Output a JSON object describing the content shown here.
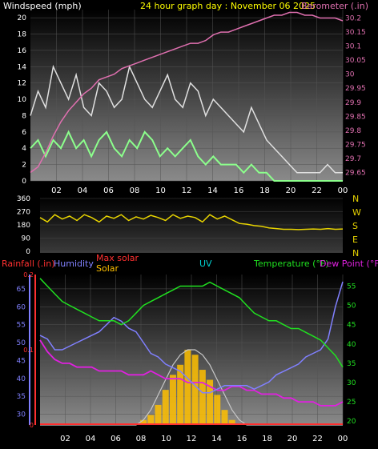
{
  "colors": {
    "wind": "#e0e0e0",
    "gust": "#8cff8c",
    "barometer": "#e070b0",
    "direction": "#e6d200",
    "humidity": "#8080ff",
    "temperature": "#20e020",
    "dewpoint": "#e020e0",
    "rain": "#ff3030",
    "solar": "#ffc000",
    "maxsolar": "#c8c8c8",
    "uv": "#00d0d0",
    "bg_top": "#000000",
    "bg_bottom": "#9a9a9a"
  },
  "chart_data": [
    {
      "type": "line",
      "title": "24 hour graph day : November 06 2025",
      "ylabel": "Windspeed (mph)",
      "y2label": "Barometer (.in)",
      "ylim": [
        0,
        21
      ],
      "yticks": [
        0,
        2,
        4,
        6,
        8,
        10,
        12,
        14,
        16,
        18,
        20
      ],
      "y2lim": [
        29.62,
        30.23
      ],
      "y2ticks": [
        "29.65",
        "29.7",
        "29.75",
        "29.8",
        "29.85",
        "29.9",
        "29.95",
        "30",
        "30.05",
        "30.1",
        "30.15",
        "30.2"
      ],
      "xticks": [
        "02",
        "04",
        "06",
        "08",
        "10",
        "12",
        "14",
        "16",
        "18",
        "20",
        "22",
        "00"
      ],
      "series": [
        {
          "key": "wind",
          "values": [
            8,
            11,
            9,
            14,
            12,
            10,
            13,
            9,
            8,
            12,
            11,
            9,
            10,
            14,
            12,
            10,
            9,
            11,
            13,
            10,
            9,
            12,
            11,
            8,
            10,
            9,
            8,
            7,
            6,
            9,
            7,
            5,
            4,
            3,
            2,
            1,
            1,
            1,
            1,
            2,
            1,
            1
          ]
        },
        {
          "key": "gust",
          "values": [
            4,
            5,
            3,
            5,
            4,
            6,
            4,
            5,
            3,
            5,
            6,
            4,
            3,
            5,
            4,
            6,
            5,
            3,
            4,
            3,
            4,
            5,
            3,
            2,
            3,
            2,
            2,
            2,
            1,
            2,
            1,
            1,
            0,
            0,
            0,
            0,
            0,
            0,
            0,
            0,
            0,
            0
          ]
        },
        {
          "key": "barometer",
          "values": [
            29.65,
            29.67,
            29.72,
            29.78,
            29.83,
            29.87,
            29.9,
            29.93,
            29.95,
            29.98,
            29.99,
            30,
            30.02,
            30.03,
            30.04,
            30.05,
            30.06,
            30.07,
            30.08,
            30.09,
            30.1,
            30.11,
            30.11,
            30.12,
            30.14,
            30.15,
            30.15,
            30.16,
            30.17,
            30.18,
            30.19,
            30.2,
            30.21,
            30.21,
            30.22,
            30.22,
            30.21,
            30.21,
            30.2,
            30.2,
            30.2,
            30.19
          ]
        }
      ]
    },
    {
      "type": "line",
      "yticks": [
        "360",
        "270",
        "180",
        "90",
        "0"
      ],
      "ylim": [
        0,
        360
      ],
      "compass": [
        "N",
        "W",
        "S",
        "E",
        "N"
      ],
      "series": [
        {
          "key": "direction",
          "values": [
            230,
            200,
            250,
            220,
            240,
            210,
            250,
            230,
            200,
            240,
            225,
            250,
            210,
            235,
            220,
            245,
            230,
            210,
            250,
            225,
            240,
            230,
            200,
            250,
            220,
            240,
            215,
            190,
            185,
            175,
            170,
            160,
            155,
            150,
            150,
            148,
            150,
            152,
            150,
            155,
            150,
            152
          ]
        }
      ]
    },
    {
      "type": "line",
      "legend": [
        "Rainfall (.in)",
        "Humidity",
        "Max solar",
        "Solar",
        "UV",
        "Temperature (°F)",
        "Dew Point (°F)"
      ],
      "y_rain_ticks": [
        "0",
        "0.1",
        "0.2"
      ],
      "y_hum_ticks": [
        "30",
        "35",
        "40",
        "45",
        "50",
        "55",
        "60",
        "65"
      ],
      "y_temp_ticks": [
        "20",
        "25",
        "30",
        "35",
        "40",
        "45",
        "50",
        "55"
      ],
      "hum_lim": [
        27,
        69
      ],
      "temp_lim": [
        19,
        58
      ],
      "xticks": [
        "02",
        "04",
        "06",
        "08",
        "10",
        "12",
        "14",
        "16",
        "18",
        "20",
        "22",
        "00"
      ],
      "series": [
        {
          "key": "temperature",
          "values": [
            57,
            55,
            53,
            51,
            50,
            49,
            48,
            47,
            46,
            46,
            46,
            45,
            46,
            48,
            50,
            51,
            52,
            53,
            54,
            55,
            55,
            55,
            55,
            56,
            55,
            54,
            53,
            52,
            50,
            48,
            47,
            46,
            46,
            45,
            44,
            44,
            43,
            42,
            41,
            39,
            37,
            34
          ]
        },
        {
          "key": "humidity",
          "values": [
            52,
            51,
            48,
            48,
            49,
            50,
            51,
            52,
            53,
            55,
            57,
            56,
            54,
            53,
            50,
            47,
            46,
            44,
            43,
            42,
            40,
            38,
            36,
            36,
            37,
            38,
            38,
            38,
            38,
            37,
            38,
            39,
            41,
            42,
            43,
            44,
            46,
            47,
            48,
            51,
            60,
            67
          ]
        },
        {
          "key": "dewpoint",
          "values": [
            41,
            38,
            36,
            35,
            35,
            34,
            34,
            34,
            33,
            33,
            33,
            33,
            32,
            32,
            32,
            33,
            32,
            31,
            31,
            31,
            30,
            30,
            30,
            29,
            28,
            28,
            29,
            29,
            28,
            28,
            27,
            27,
            27,
            26,
            26,
            25,
            25,
            25,
            24,
            24,
            24,
            25
          ]
        },
        {
          "key": "solar",
          "values": [
            0,
            0,
            0,
            0,
            0,
            0,
            0,
            0,
            0,
            0,
            0,
            0,
            0,
            0,
            1,
            2,
            4,
            7,
            10,
            12,
            15,
            14,
            11,
            9,
            6,
            3,
            1,
            0,
            0,
            0,
            0,
            0,
            0,
            0,
            0,
            0,
            0,
            0,
            0,
            0,
            0,
            0
          ]
        },
        {
          "key": "maxsolar",
          "values": [
            0,
            0,
            0,
            0,
            0,
            0,
            0,
            0,
            0,
            0,
            0,
            0,
            0,
            0,
            1,
            3,
            6,
            9,
            12,
            14,
            15,
            15,
            14,
            12,
            9,
            6,
            3,
            1,
            0,
            0,
            0,
            0,
            0,
            0,
            0,
            0,
            0,
            0,
            0,
            0,
            0,
            0
          ]
        }
      ]
    }
  ]
}
